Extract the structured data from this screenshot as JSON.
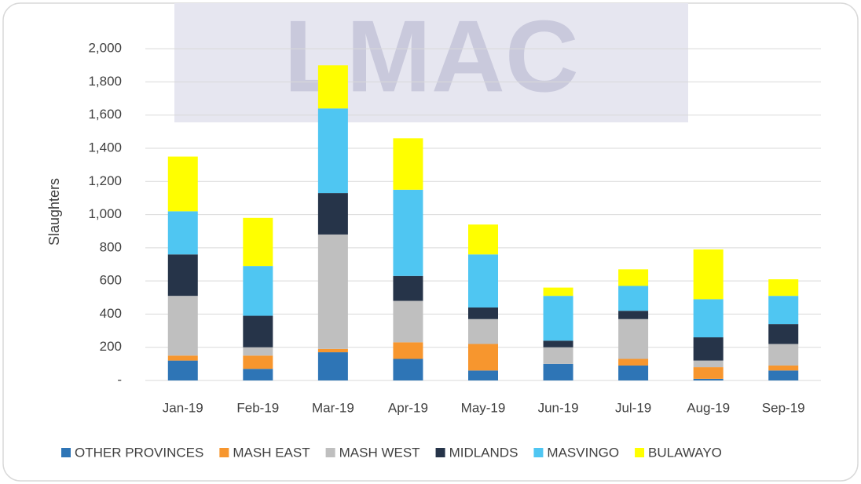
{
  "chart_data": {
    "type": "bar",
    "stacked": true,
    "watermark": "LMAC",
    "y_label": "Slaughters",
    "categories": [
      "Jan-19",
      "Feb-19",
      "Mar-19",
      "Apr-19",
      "May-19",
      "Jun-19",
      "Jul-19",
      "Aug-19",
      "Sep-19"
    ],
    "series": [
      {
        "name": "OTHER PROVINCES",
        "color": "#2e75b6",
        "values": [
          120,
          70,
          170,
          130,
          60,
          100,
          90,
          10,
          60
        ]
      },
      {
        "name": "MASH EAST",
        "color": "#f7962e",
        "values": [
          30,
          80,
          20,
          100,
          160,
          0,
          40,
          70,
          30
        ]
      },
      {
        "name": "MASH WEST",
        "color": "#bfbfbf",
        "values": [
          360,
          50,
          690,
          250,
          150,
          100,
          240,
          40,
          130
        ]
      },
      {
        "name": "MIDLANDS",
        "color": "#263449",
        "values": [
          250,
          190,
          250,
          150,
          70,
          40,
          50,
          140,
          120
        ]
      },
      {
        "name": "MASVINGO",
        "color": "#4fc6f2",
        "values": [
          260,
          300,
          510,
          520,
          320,
          270,
          150,
          230,
          170
        ]
      },
      {
        "name": "BULAWAYO",
        "color": "#ffff00",
        "values": [
          330,
          290,
          260,
          310,
          180,
          50,
          100,
          300,
          100
        ]
      }
    ],
    "ylim": [
      0,
      2100
    ],
    "yticks": [
      {
        "value": 0,
        "label": "-"
      },
      200,
      400,
      600,
      800,
      {
        "value": 1000,
        "label": "1,000"
      },
      {
        "value": 1200,
        "label": "1,200"
      },
      {
        "value": 1400,
        "label": "1,400"
      },
      {
        "value": 1600,
        "label": "1,600"
      },
      {
        "value": 1800,
        "label": "1,800"
      },
      {
        "value": 2000,
        "label": "2,000"
      }
    ],
    "grid": true,
    "legend": "bottom"
  }
}
